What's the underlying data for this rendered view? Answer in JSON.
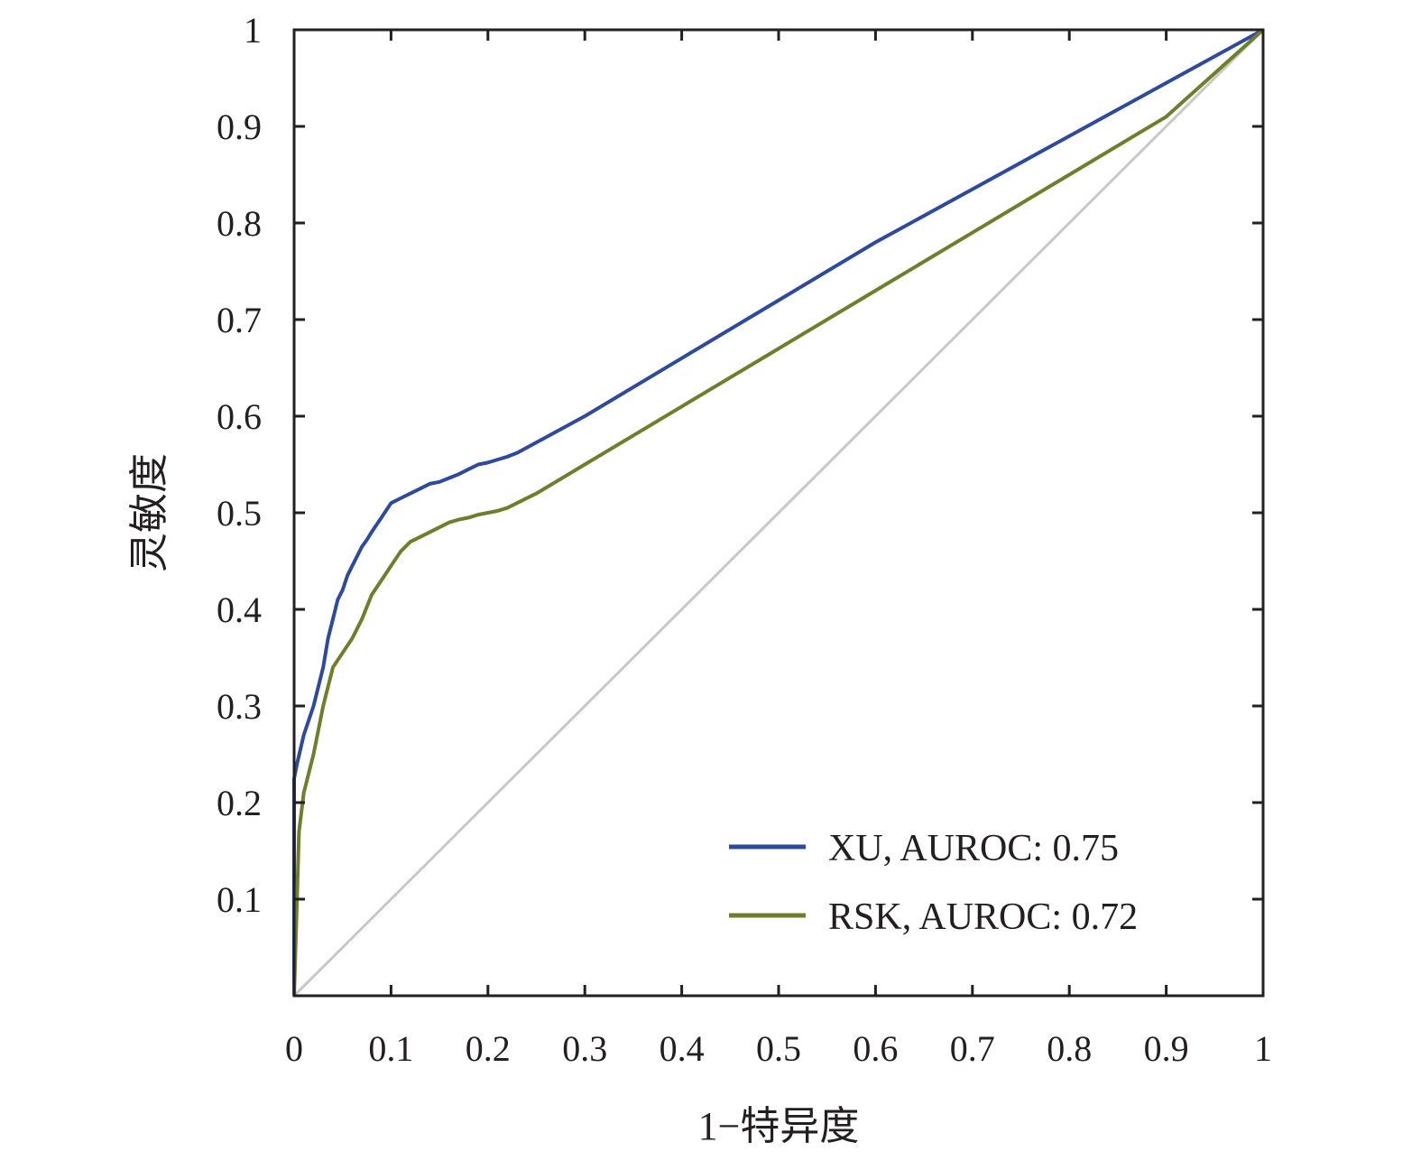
{
  "chart_data": {
    "type": "line",
    "title": "",
    "xlabel": "1−特异度",
    "ylabel": "灵敏度",
    "xlim": [
      0,
      1
    ],
    "ylim": [
      0,
      1
    ],
    "xticks": [
      {
        "value": 0,
        "label": "0"
      },
      {
        "value": 0.1,
        "label": "0.1"
      },
      {
        "value": 0.2,
        "label": "0.2"
      },
      {
        "value": 0.3,
        "label": "0.3"
      },
      {
        "value": 0.4,
        "label": "0.4"
      },
      {
        "value": 0.5,
        "label": "0.5"
      },
      {
        "value": 0.6,
        "label": "0.6"
      },
      {
        "value": 0.7,
        "label": "0.7"
      },
      {
        "value": 0.8,
        "label": "0.8"
      },
      {
        "value": 0.9,
        "label": "0.9"
      },
      {
        "value": 1,
        "label": "1"
      }
    ],
    "yticks": [
      {
        "value": 0.1,
        "label": "0.1"
      },
      {
        "value": 0.2,
        "label": "0.2"
      },
      {
        "value": 0.3,
        "label": "0.3"
      },
      {
        "value": 0.4,
        "label": "0.4"
      },
      {
        "value": 0.5,
        "label": "0.5"
      },
      {
        "value": 0.6,
        "label": "0.6"
      },
      {
        "value": 0.7,
        "label": "0.7"
      },
      {
        "value": 0.8,
        "label": "0.8"
      },
      {
        "value": 0.9,
        "label": "0.9"
      },
      {
        "value": 1,
        "label": "1"
      }
    ],
    "grid": false,
    "legend_position": "bottom-right",
    "series": [
      {
        "name": "XU, AUROC: 0.75",
        "color": "#2e4a9e",
        "x": [
          0,
          0,
          0.003,
          0.01,
          0.02,
          0.03,
          0.035,
          0.04,
          0.045,
          0.05,
          0.055,
          0.06,
          0.065,
          0.07,
          0.075,
          0.08,
          0.09,
          0.1,
          0.11,
          0.12,
          0.13,
          0.14,
          0.15,
          0.16,
          0.17,
          0.18,
          0.19,
          0.2,
          0.21,
          0.22,
          0.23,
          0.3,
          0.4,
          0.5,
          0.6,
          0.7,
          0.8,
          0.9,
          1
        ],
        "y": [
          0,
          0.225,
          0.24,
          0.27,
          0.3,
          0.34,
          0.37,
          0.39,
          0.41,
          0.42,
          0.435,
          0.445,
          0.455,
          0.465,
          0.472,
          0.48,
          0.495,
          0.51,
          0.515,
          0.52,
          0.525,
          0.53,
          0.532,
          0.536,
          0.54,
          0.545,
          0.55,
          0.552,
          0.555,
          0.558,
          0.562,
          0.6,
          0.66,
          0.72,
          0.78,
          0.835,
          0.89,
          0.945,
          1
        ]
      },
      {
        "name": "RSK, AUROC: 0.72",
        "color": "#6e7f2c",
        "x": [
          0,
          0.003,
          0.005,
          0.01,
          0.02,
          0.03,
          0.04,
          0.05,
          0.06,
          0.07,
          0.08,
          0.09,
          0.1,
          0.11,
          0.12,
          0.13,
          0.14,
          0.15,
          0.16,
          0.17,
          0.18,
          0.19,
          0.2,
          0.21,
          0.22,
          0.25,
          0.3,
          0.4,
          0.5,
          0.6,
          0.7,
          0.8,
          0.9,
          1
        ],
        "y": [
          0,
          0.1,
          0.17,
          0.21,
          0.25,
          0.3,
          0.34,
          0.355,
          0.37,
          0.39,
          0.415,
          0.43,
          0.445,
          0.46,
          0.47,
          0.475,
          0.48,
          0.485,
          0.49,
          0.493,
          0.495,
          0.498,
          0.5,
          0.502,
          0.505,
          0.52,
          0.55,
          0.61,
          0.67,
          0.73,
          0.79,
          0.85,
          0.91,
          1
        ]
      }
    ],
    "reference_line": {
      "x": [
        0,
        1
      ],
      "y": [
        0,
        1
      ],
      "color": "#c8c8c8"
    }
  }
}
